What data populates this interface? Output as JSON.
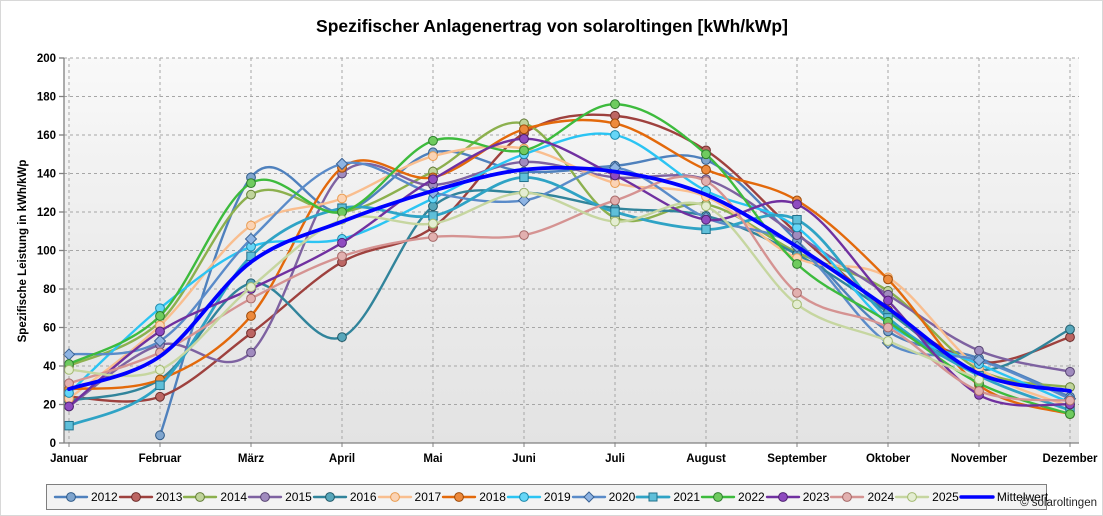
{
  "title": "Spezifischer Anlagenertrag von solaroltingen [kWh/kWp]",
  "y_axis": {
    "label": "Spezifische Leistung in kWh/kWp",
    "min": 0,
    "max": 200,
    "step": 20
  },
  "copyright": "© solaroltingen",
  "chart_data": {
    "type": "line",
    "title": "Spezifischer Anlagenertrag von solaroltingen [kWh/kWp]",
    "xlabel": "",
    "ylabel": "Spezifische Leistung in kWh/kWp",
    "ylim": [
      0,
      200
    ],
    "grid": true,
    "legend_position": "bottom",
    "categories": [
      "Januar",
      "Februar",
      "März",
      "April",
      "Mai",
      "Juni",
      "Juli",
      "August",
      "September",
      "Oktober",
      "November",
      "Dezember"
    ],
    "series": [
      {
        "name": "2012",
        "color": "#4F81BD",
        "marker": "circle",
        "marker_fill": "#7FA5CE",
        "marker_stroke": "#2F5A88",
        "width": 2.4,
        "values": [
          null,
          4,
          138,
          120,
          151,
          141,
          144,
          147,
          105,
          58,
          44,
          24
        ]
      },
      {
        "name": "2013",
        "color": "#9E413E",
        "marker": "circle",
        "marker_fill": "#BC6663",
        "marker_stroke": "#6E2D2B",
        "width": 2.4,
        "values": [
          24,
          24,
          57,
          94,
          112,
          161,
          170,
          152,
          109,
          69,
          42,
          55
        ]
      },
      {
        "name": "2014",
        "color": "#8CB04E",
        "marker": "circle",
        "marker_fill": "#C0D49B",
        "marker_stroke": "#647E38",
        "width": 2.4,
        "values": [
          40,
          63,
          129,
          120,
          141,
          166,
          117,
          124,
          99,
          79,
          38,
          29
        ]
      },
      {
        "name": "2015",
        "color": "#7E62A1",
        "marker": "circle",
        "marker_fill": "#A08BBE",
        "marker_stroke": "#584473",
        "width": 2.4,
        "values": [
          19,
          51,
          47,
          140,
          134,
          146,
          138,
          137,
          108,
          77,
          48,
          37
        ]
      },
      {
        "name": "2016",
        "color": "#31849B",
        "marker": "circle",
        "marker_fill": "#58A7BB",
        "marker_stroke": "#215A69",
        "width": 2.4,
        "values": [
          22,
          33,
          83,
          55,
          123,
          130,
          122,
          118,
          98,
          68,
          38,
          59
        ]
      },
      {
        "name": "2017",
        "color": "#F9BE8F",
        "marker": "circle",
        "marker_fill": "#FBD3B4",
        "marker_stroke": "#E99C51",
        "width": 2.4,
        "values": [
          23,
          61,
          113,
          127,
          149,
          153,
          135,
          128,
          96,
          86,
          39,
          19
        ]
      },
      {
        "name": "2018",
        "color": "#E3690B",
        "marker": "circle",
        "marker_fill": "#ED8A3C",
        "marker_stroke": "#9E4A08",
        "width": 2.4,
        "values": [
          28,
          33,
          66,
          143,
          138,
          163,
          166,
          142,
          126,
          85,
          30,
          15
        ]
      },
      {
        "name": "2019",
        "color": "#2BC4F3",
        "marker": "circle",
        "marker_fill": "#66D6F7",
        "marker_stroke": "#1A88AB",
        "width": 2.4,
        "values": [
          26,
          70,
          102,
          106,
          127,
          150,
          160,
          131,
          112,
          62,
          41,
          21
        ]
      },
      {
        "name": "2020",
        "color": "#5A8BC9",
        "marker": "diamond",
        "marker_fill": "#8EB4E3",
        "marker_stroke": "#3A6294",
        "width": 2.4,
        "values": [
          46,
          53,
          106,
          145,
          130,
          126,
          143,
          117,
          102,
          52,
          43,
          23
        ]
      },
      {
        "name": "2021",
        "color": "#2FA3C5",
        "marker": "square",
        "marker_fill": "#5FBFD9",
        "marker_stroke": "#20708A",
        "width": 2.8,
        "values": [
          9,
          30,
          97,
          122,
          118,
          138,
          120,
          111,
          116,
          65,
          35,
          17
        ]
      },
      {
        "name": "2022",
        "color": "#3DBB3D",
        "marker": "circle",
        "marker_fill": "#6FCB5F",
        "marker_stroke": "#2E7D2E",
        "width": 2.4,
        "values": [
          41,
          66,
          135,
          120,
          157,
          152,
          176,
          150,
          93,
          63,
          31,
          15
        ]
      },
      {
        "name": "2023",
        "color": "#7030A0",
        "marker": "circle",
        "marker_fill": "#8F4BC0",
        "marker_stroke": "#4E2170",
        "width": 2.4,
        "values": [
          19,
          58,
          80,
          104,
          137,
          158,
          139,
          116,
          124,
          74,
          25,
          20
        ]
      },
      {
        "name": "2024",
        "color": "#D59392",
        "marker": "circle",
        "marker_fill": "#E2B0AF",
        "marker_stroke": "#A56867",
        "width": 2.4,
        "values": [
          31,
          47,
          75,
          97,
          107,
          108,
          126,
          136,
          78,
          60,
          27,
          22
        ]
      },
      {
        "name": "2025",
        "color": "#C6D6A0",
        "marker": "circle",
        "marker_fill": "#E4EDD2",
        "marker_stroke": "#A3BA70",
        "width": 2.4,
        "values": [
          38,
          38,
          81,
          116,
          114,
          130,
          115,
          123,
          72,
          53,
          33,
          null
        ]
      },
      {
        "name": "Mittelwert",
        "color": "#0000FF",
        "marker": "none",
        "marker_fill": "#0000FF",
        "marker_stroke": "#0000FF",
        "width": 3.8,
        "values": [
          28,
          45,
          94,
          115,
          131,
          142,
          141,
          129,
          102,
          70,
          36,
          27
        ]
      }
    ]
  }
}
